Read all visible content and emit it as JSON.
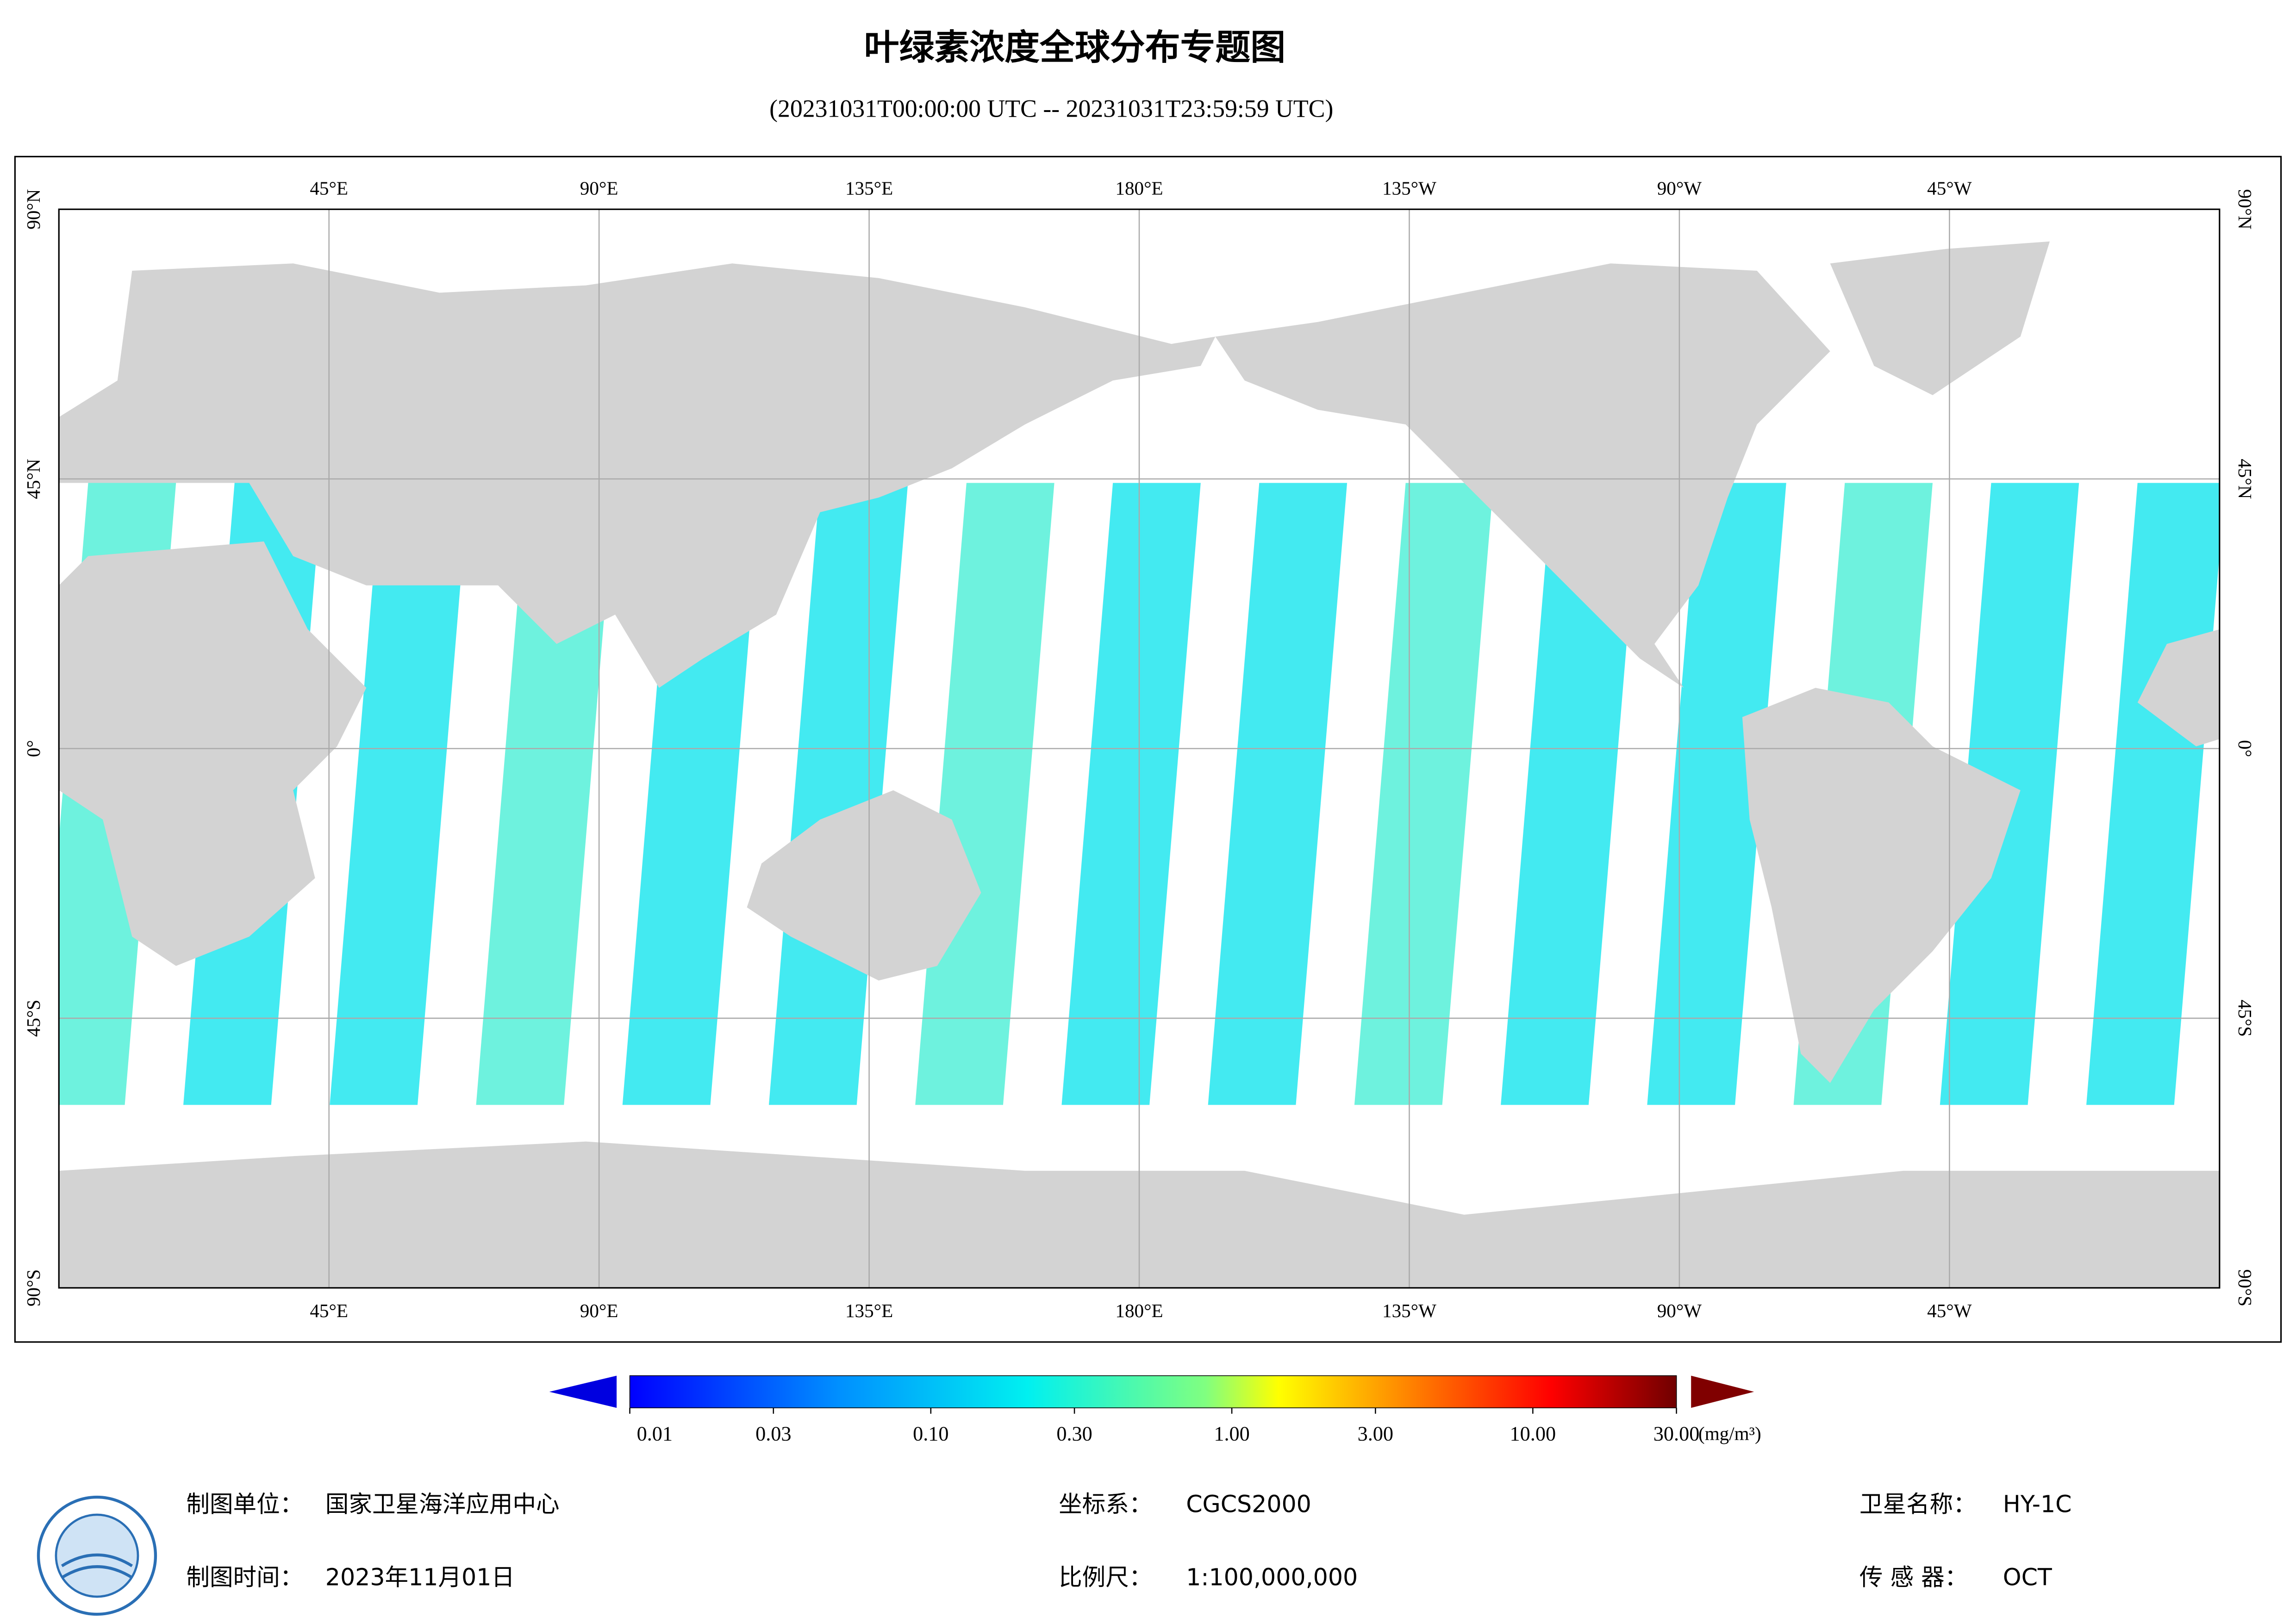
{
  "header": {
    "title": "叶绿素浓度全球分布专题图",
    "subtitle": "(20231031T00:00:00 UTC -- 20231031T23:59:59 UTC)"
  },
  "map": {
    "lon_range": [
      0,
      360
    ],
    "lat_range": [
      90,
      -90
    ],
    "lon_ticks": [
      {
        "value": 45,
        "label": "45°E"
      },
      {
        "value": 90,
        "label": "90°E"
      },
      {
        "value": 135,
        "label": "135°E"
      },
      {
        "value": 180,
        "label": "180°E"
      },
      {
        "value": 225,
        "label": "135°W"
      },
      {
        "value": 270,
        "label": "90°W"
      },
      {
        "value": 315,
        "label": "45°W"
      }
    ],
    "lat_ticks": [
      {
        "value": 90,
        "label": "90°N"
      },
      {
        "value": 45,
        "label": "45°N"
      },
      {
        "value": 0,
        "label": "0°"
      },
      {
        "value": -45,
        "label": "45°S"
      },
      {
        "value": -90,
        "label": "90°S"
      }
    ]
  },
  "colorbar": {
    "range": [
      0.01,
      30
    ],
    "log_scale": true,
    "unit": "(mg/m³)",
    "ticks": [
      {
        "value": 0.01,
        "label": "0.01"
      },
      {
        "value": 0.03,
        "label": "0.03"
      },
      {
        "value": 0.1,
        "label": "0.10"
      },
      {
        "value": 0.3,
        "label": "0.30"
      },
      {
        "value": 1,
        "label": "1.00"
      },
      {
        "value": 3,
        "label": "3.00"
      },
      {
        "value": 10,
        "label": "10.00"
      },
      {
        "value": 30,
        "label": "30.00"
      }
    ]
  },
  "footer": {
    "producer": {
      "label": "制图单位：",
      "value": "国家卫星海洋应用中心"
    },
    "date": {
      "label": "制图时间：",
      "value": "2023年11月01日"
    },
    "crs": {
      "label": "坐标系：",
      "value": "CGCS2000"
    },
    "scale": {
      "label": "比例尺：",
      "value": "1:100,000,000"
    },
    "satellite": {
      "label": "卫星名称：",
      "value": "HY-1C"
    },
    "sensor": {
      "label": "传 感 器：",
      "value": "OCT"
    }
  }
}
